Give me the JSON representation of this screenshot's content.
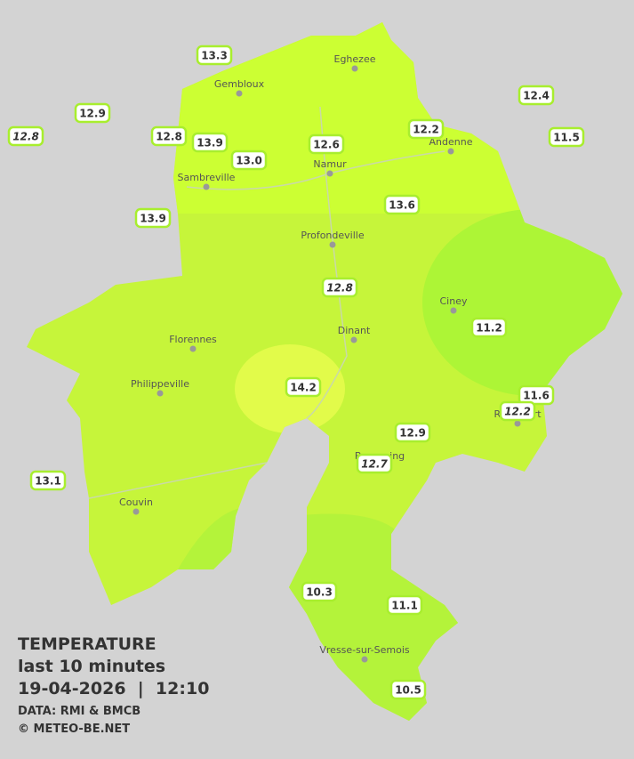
{
  "legend": {
    "title": "TEMPERATURE",
    "subtitle": "last 10 minutes",
    "datetime": "19-04-2026  |  12:10",
    "source": "DATA: RMI & BMCB",
    "copyright": "© METEO-BE.NET"
  },
  "cities": [
    "Eghezee",
    "Gembloux",
    "Andenne",
    "Namur",
    "Sambreville",
    "Profondeville",
    "Ciney",
    "Dinant",
    "Florennes",
    "Philippeville",
    "Rochefort",
    "Beauraing",
    "Couvin",
    "Vresse-sur-Semois"
  ],
  "stations": [
    "13.3",
    "12.9",
    "12.8",
    "12.8",
    "13.9",
    "13.0",
    "12.6",
    "12.2",
    "12.4",
    "11.5",
    "13.9",
    "13.6",
    "12.8",
    "11.2",
    "14.2",
    "11.6",
    "12.2",
    "12.9",
    "12.7",
    "13.1",
    "10.3",
    "11.1",
    "10.5"
  ]
}
